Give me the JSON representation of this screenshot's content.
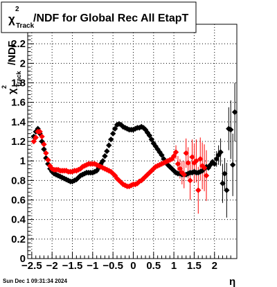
{
  "chart_data": {
    "type": "scatter",
    "title": {
      "prefix": "χ",
      "sup": "2",
      "sub": "Track",
      "rest": "/NDF for Global Rec All EtapT"
    },
    "xlabel": "η",
    "ylabel": {
      "prefix": "χ",
      "sup": "2",
      "sub": "Track",
      "rest": "/NDF"
    },
    "xlim": [
      -2.6,
      2.55
    ],
    "ylim": [
      0,
      2.4
    ],
    "x_ticks": [
      -2.5,
      -2,
      -1.5,
      -1,
      -0.5,
      0,
      0.5,
      1,
      1.5,
      2
    ],
    "x_tick_labels": [
      "−2.5",
      "−2",
      "−1.5",
      "−1",
      "−0.5",
      "0",
      "0.5",
      "1",
      "1.5",
      "2"
    ],
    "y_ticks": [
      0,
      0.2,
      0.4,
      0.6,
      0.8,
      1,
      1.2,
      1.4,
      1.6,
      1.8,
      2,
      2.2
    ],
    "y_tick_labels": [
      "0",
      "0.2",
      "0.4",
      "0.6",
      "0.8",
      "1",
      "1.2",
      "1.4",
      "1.6",
      "1.8",
      "2",
      "2.2"
    ],
    "grid": true,
    "series": [
      {
        "color": "#000000",
        "points": [
          [
            -2.45,
            1.25
          ],
          [
            -2.4,
            1.3
          ],
          [
            -2.35,
            1.33
          ],
          [
            -2.3,
            1.28
          ],
          [
            -2.25,
            1.2
          ],
          [
            -2.2,
            1.12
          ],
          [
            -2.15,
            1.03
          ],
          [
            -2.1,
            0.97
          ],
          [
            -2.05,
            0.92
          ],
          [
            -2.0,
            0.89
          ],
          [
            -1.95,
            0.87
          ],
          [
            -1.9,
            0.86
          ],
          [
            -1.85,
            0.85
          ],
          [
            -1.8,
            0.84
          ],
          [
            -1.75,
            0.83
          ],
          [
            -1.7,
            0.82
          ],
          [
            -1.65,
            0.81
          ],
          [
            -1.6,
            0.8
          ],
          [
            -1.55,
            0.79
          ],
          [
            -1.5,
            0.79
          ],
          [
            -1.45,
            0.8
          ],
          [
            -1.4,
            0.81
          ],
          [
            -1.35,
            0.83
          ],
          [
            -1.3,
            0.85
          ],
          [
            -1.25,
            0.86
          ],
          [
            -1.2,
            0.87
          ],
          [
            -1.15,
            0.88
          ],
          [
            -1.1,
            0.88
          ],
          [
            -1.05,
            0.88
          ],
          [
            -1.0,
            0.88
          ],
          [
            -0.95,
            0.89
          ],
          [
            -0.9,
            0.9
          ],
          [
            -0.85,
            0.93
          ],
          [
            -0.8,
            0.97
          ],
          [
            -0.75,
            1.0
          ],
          [
            -0.7,
            1.05
          ],
          [
            -0.65,
            1.1
          ],
          [
            -0.6,
            1.16
          ],
          [
            -0.55,
            1.22
          ],
          [
            -0.5,
            1.28
          ],
          [
            -0.45,
            1.33
          ],
          [
            -0.4,
            1.37
          ],
          [
            -0.35,
            1.38
          ],
          [
            -0.3,
            1.37
          ],
          [
            -0.25,
            1.35
          ],
          [
            -0.2,
            1.34
          ],
          [
            -0.15,
            1.33
          ],
          [
            -0.1,
            1.32
          ],
          [
            -0.05,
            1.32
          ],
          [
            0.0,
            1.32
          ],
          [
            0.05,
            1.33
          ],
          [
            0.1,
            1.34
          ],
          [
            0.15,
            1.34
          ],
          [
            0.2,
            1.35
          ],
          [
            0.25,
            1.34
          ],
          [
            0.3,
            1.32
          ],
          [
            0.35,
            1.29
          ],
          [
            0.4,
            1.26
          ],
          [
            0.45,
            1.22
          ],
          [
            0.5,
            1.18
          ],
          [
            0.55,
            1.15
          ],
          [
            0.6,
            1.12
          ],
          [
            0.65,
            1.09
          ],
          [
            0.7,
            1.06
          ],
          [
            0.75,
            1.02
          ],
          [
            0.8,
            0.99
          ],
          [
            0.85,
            0.96
          ],
          [
            0.9,
            0.94
          ],
          [
            0.95,
            0.92
          ],
          [
            1.0,
            0.9
          ],
          [
            1.05,
            0.88
          ],
          [
            1.1,
            0.87
          ],
          [
            1.15,
            0.87
          ],
          [
            1.2,
            0.86
          ],
          [
            1.25,
            0.86
          ],
          [
            1.3,
            0.86
          ],
          [
            1.35,
            0.87
          ],
          [
            1.4,
            0.88
          ],
          [
            1.45,
            0.88
          ],
          [
            1.5,
            0.89
          ],
          [
            1.55,
            0.88
          ],
          [
            1.6,
            0.88
          ],
          [
            1.65,
            0.89
          ],
          [
            1.7,
            0.9
          ],
          [
            1.75,
            0.92
          ],
          [
            1.8,
            0.94
          ],
          [
            1.85,
            0.93
          ],
          [
            1.9,
            0.96
          ],
          [
            1.95,
            0.99
          ],
          [
            2.0,
            0.97
          ],
          [
            2.05,
            1.02
          ],
          [
            2.1,
            1.06
          ],
          [
            2.15,
            1.09
          ],
          [
            2.2,
            0.77
          ],
          [
            2.25,
            0.87
          ],
          [
            2.3,
            0.7
          ],
          [
            2.35,
            1.33
          ],
          [
            2.4,
            1.32
          ],
          [
            2.45,
            0.96
          ],
          [
            2.5,
            1.5
          ]
        ],
        "errors": [
          [
            2.05,
            0.08
          ],
          [
            2.1,
            0.1
          ],
          [
            2.15,
            0.14
          ],
          [
            2.2,
            0.2
          ],
          [
            2.25,
            0.16
          ],
          [
            2.3,
            0.28
          ],
          [
            2.35,
            0.22
          ],
          [
            2.4,
            0.3
          ],
          [
            2.45,
            0.32
          ],
          [
            2.5,
            0.3
          ]
        ]
      },
      {
        "color": "#ff0000",
        "points": [
          [
            -2.45,
            1.2
          ],
          [
            -2.4,
            1.24
          ],
          [
            -2.35,
            1.3
          ],
          [
            -2.3,
            1.3
          ],
          [
            -2.25,
            1.25
          ],
          [
            -2.2,
            1.17
          ],
          [
            -2.15,
            1.08
          ],
          [
            -2.1,
            1.01
          ],
          [
            -2.05,
            0.95
          ],
          [
            -2.0,
            0.92
          ],
          [
            -1.95,
            0.91
          ],
          [
            -1.9,
            0.91
          ],
          [
            -1.85,
            0.91
          ],
          [
            -1.8,
            0.9
          ],
          [
            -1.75,
            0.9
          ],
          [
            -1.7,
            0.9
          ],
          [
            -1.65,
            0.9
          ],
          [
            -1.6,
            0.89
          ],
          [
            -1.55,
            0.89
          ],
          [
            -1.5,
            0.89
          ],
          [
            -1.45,
            0.9
          ],
          [
            -1.4,
            0.9
          ],
          [
            -1.35,
            0.91
          ],
          [
            -1.3,
            0.92
          ],
          [
            -1.25,
            0.94
          ],
          [
            -1.2,
            0.95
          ],
          [
            -1.15,
            0.96
          ],
          [
            -1.1,
            0.97
          ],
          [
            -1.05,
            0.97
          ],
          [
            -1.0,
            0.97
          ],
          [
            -0.95,
            0.97
          ],
          [
            -0.9,
            0.96
          ],
          [
            -0.85,
            0.95
          ],
          [
            -0.8,
            0.94
          ],
          [
            -0.75,
            0.93
          ],
          [
            -0.7,
            0.92
          ],
          [
            -0.65,
            0.91
          ],
          [
            -0.6,
            0.9
          ],
          [
            -0.55,
            0.89
          ],
          [
            -0.5,
            0.87
          ],
          [
            -0.45,
            0.85
          ],
          [
            -0.4,
            0.82
          ],
          [
            -0.35,
            0.8
          ],
          [
            -0.3,
            0.78
          ],
          [
            -0.25,
            0.76
          ],
          [
            -0.2,
            0.75
          ],
          [
            -0.15,
            0.74
          ],
          [
            -0.1,
            0.74
          ],
          [
            -0.05,
            0.75
          ],
          [
            0.0,
            0.76
          ],
          [
            0.05,
            0.76
          ],
          [
            0.1,
            0.77
          ],
          [
            0.15,
            0.79
          ],
          [
            0.2,
            0.8
          ],
          [
            0.25,
            0.82
          ],
          [
            0.3,
            0.84
          ],
          [
            0.35,
            0.86
          ],
          [
            0.4,
            0.88
          ],
          [
            0.45,
            0.9
          ],
          [
            0.5,
            0.92
          ],
          [
            0.55,
            0.94
          ],
          [
            0.6,
            0.95
          ],
          [
            0.65,
            0.96
          ],
          [
            0.7,
            0.97
          ],
          [
            0.75,
            0.98
          ],
          [
            0.8,
            0.99
          ],
          [
            0.85,
            1.0
          ],
          [
            0.9,
            1.01
          ],
          [
            0.95,
            1.02
          ],
          [
            1.0,
            1.05
          ],
          [
            1.05,
            1.09
          ],
          [
            1.1,
            0.97
          ],
          [
            1.15,
            0.92
          ],
          [
            1.2,
            0.88
          ],
          [
            1.25,
            0.86
          ],
          [
            1.3,
            1.08
          ],
          [
            1.35,
            0.98
          ],
          [
            1.4,
            0.8
          ],
          [
            1.45,
            1.04
          ],
          [
            1.5,
            0.98
          ],
          [
            1.55,
            1.0
          ],
          [
            1.6,
            0.7
          ],
          [
            1.65,
            1.02
          ],
          [
            1.7,
            0.95
          ],
          [
            1.75,
            0.93
          ],
          [
            1.8,
            0.85
          ]
        ],
        "errors": [
          [
            1.0,
            0.05
          ],
          [
            1.05,
            0.07
          ],
          [
            1.1,
            0.08
          ],
          [
            1.15,
            0.1
          ],
          [
            1.2,
            0.12
          ],
          [
            1.25,
            0.14
          ],
          [
            1.3,
            0.15
          ],
          [
            1.35,
            0.16
          ],
          [
            1.4,
            0.2
          ],
          [
            1.45,
            0.18
          ],
          [
            1.5,
            0.2
          ],
          [
            1.55,
            0.22
          ],
          [
            1.6,
            0.24
          ],
          [
            1.65,
            0.22
          ],
          [
            1.7,
            0.24
          ],
          [
            1.75,
            0.24
          ],
          [
            1.8,
            0.26
          ]
        ]
      }
    ]
  },
  "footer": {
    "timestamp": "Sun Dec  1 09:31:34 2024"
  }
}
